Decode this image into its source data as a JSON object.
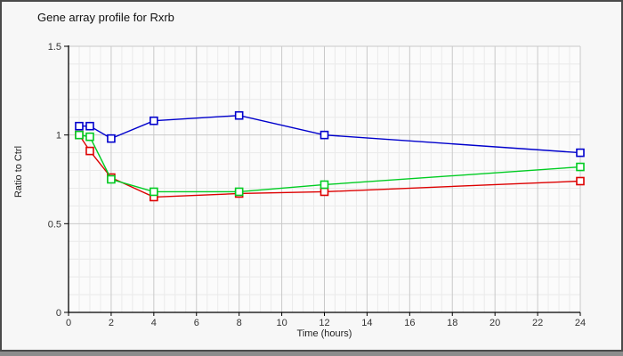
{
  "chart_data": {
    "type": "line",
    "title": "Gene array profile for Rxrb",
    "xlabel": "Time (hours)",
    "ylabel": "Ratio to Ctrl",
    "xlim": [
      0,
      24
    ],
    "ylim": [
      0,
      1.5
    ],
    "x_major_ticks": [
      0,
      2,
      4,
      6,
      8,
      10,
      12,
      14,
      16,
      18,
      20,
      22,
      24
    ],
    "x_tick_labels": [
      "0",
      "2",
      "4",
      "6",
      "8",
      "10",
      "12",
      "14",
      "16",
      "18",
      "20",
      "22",
      "24"
    ],
    "y_major_ticks": [
      0,
      0.5,
      1,
      1.5
    ],
    "y_tick_labels": [
      "0",
      "0.5",
      "1",
      "1.5"
    ],
    "x_minor_step": 0.5,
    "y_minor_step": 0.1,
    "grid": true,
    "legend_position": "none",
    "marker": "open-square",
    "x": [
      0.5,
      1,
      2,
      4,
      8,
      12,
      24
    ],
    "series": [
      {
        "name": "red-series",
        "color": "#dd0000",
        "values": [
          1.0,
          0.91,
          0.76,
          0.65,
          0.67,
          0.68,
          0.74
        ]
      },
      {
        "name": "green-series",
        "color": "#00cc22",
        "values": [
          1.0,
          0.99,
          0.75,
          0.68,
          0.68,
          0.72,
          0.82
        ]
      },
      {
        "name": "blue-series",
        "color": "#0000cc",
        "values": [
          1.05,
          1.05,
          0.98,
          1.08,
          1.11,
          1.0,
          0.9
        ]
      }
    ]
  },
  "style_colors": {
    "plot_background": "#fbfbfb",
    "outer_background": "#f7f7f7",
    "minor_grid": "#eaeaea",
    "major_grid": "#c9c9c9",
    "axis": "#000000",
    "tick_label": "#333333",
    "marker_fill": "#ffffff"
  }
}
